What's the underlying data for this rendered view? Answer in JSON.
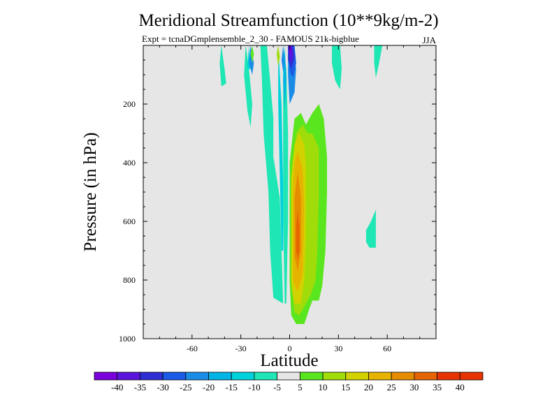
{
  "chart_data": {
    "type": "contour",
    "title": "Meridional Streamfunction (10**9kg/m-2)",
    "subtitle": "Expt = tcnaDGmplensemble_2_30 - FAMOUS 21k-bigblue",
    "season": "JJA",
    "xlabel": "Latitude",
    "ylabel": "Pressure (in hPa)",
    "xlim": [
      -90,
      90
    ],
    "ylim": [
      0,
      1000
    ],
    "y_inverted": true,
    "xticks": [
      -60,
      -30,
      0,
      30,
      60
    ],
    "yticks": [
      200,
      400,
      600,
      800,
      1000
    ],
    "background_color": "#e6e6e6",
    "colorbar": {
      "labels": [
        "-40",
        "-35",
        "-30",
        "-25",
        "-20",
        "-15",
        "-10",
        "-5",
        "5",
        "10",
        "15",
        "20",
        "25",
        "30",
        "35",
        "40"
      ],
      "colors": [
        "#7a00dc",
        "#5a14dc",
        "#2e2ed2",
        "#1a5ae6",
        "#1a8ce6",
        "#00b4e6",
        "#00d2dc",
        "#1ee6b4",
        "#e6e6e6",
        "#5ae61e",
        "#a0dc0a",
        "#d2d200",
        "#e6b400",
        "#e68c00",
        "#e66400",
        "#e63200"
      ]
    },
    "regions": [
      {
        "level": "-5",
        "color": "#1ee6b4",
        "points": [
          [
            -14,
            0
          ],
          [
            -12,
            120
          ],
          [
            -10,
            250
          ],
          [
            -10,
            380
          ],
          [
            -6,
            520
          ],
          [
            -5,
            700
          ],
          [
            -4,
            880
          ],
          [
            -10,
            860
          ],
          [
            -12,
            700
          ],
          [
            -13,
            500
          ],
          [
            -16,
            300
          ],
          [
            -17,
            120
          ],
          [
            -18,
            0
          ]
        ]
      },
      {
        "level": "-5",
        "color": "#1ee6b4",
        "points": [
          [
            -4,
            0
          ],
          [
            -2,
            80
          ],
          [
            -1,
            300
          ],
          [
            -1,
            600
          ],
          [
            -2,
            880
          ],
          [
            -3,
            880
          ],
          [
            -4,
            600
          ]
        ]
      },
      {
        "level": "-5",
        "color": "#1ee6b4",
        "points": [
          [
            -27,
            0
          ],
          [
            -25,
            80
          ],
          [
            -23,
            200
          ],
          [
            -24,
            280
          ],
          [
            -26,
            220
          ],
          [
            -28,
            100
          ]
        ]
      },
      {
        "level": "-5",
        "color": "#1ee6b4",
        "points": [
          [
            -42,
            0
          ],
          [
            -40,
            80
          ],
          [
            -39,
            130
          ],
          [
            -42,
            140
          ],
          [
            -43,
            60
          ]
        ]
      },
      {
        "level": "-5",
        "color": "#1ee6b4",
        "points": [
          [
            26,
            0
          ],
          [
            31,
            0
          ],
          [
            32,
            80
          ],
          [
            31,
            150
          ],
          [
            28,
            120
          ],
          [
            26,
            60
          ]
        ]
      },
      {
        "level": "-5",
        "color": "#1ee6b4",
        "points": [
          [
            52,
            0
          ],
          [
            57,
            0
          ],
          [
            55,
            60
          ],
          [
            53,
            110
          ],
          [
            52,
            60
          ]
        ]
      },
      {
        "level": "-5",
        "color": "#1ee6b4",
        "points": [
          [
            53,
            560
          ],
          [
            53,
            690
          ],
          [
            49,
            690
          ],
          [
            47,
            670
          ],
          [
            47,
            630
          ],
          [
            50,
            600
          ]
        ]
      },
      {
        "level": "-10",
        "color": "#00d2dc",
        "points": [
          [
            -7,
            0
          ],
          [
            -5,
            200
          ],
          [
            -4,
            480
          ],
          [
            -4,
            700
          ],
          [
            -5,
            700
          ],
          [
            -6,
            450
          ],
          [
            -7,
            200
          ]
        ]
      },
      {
        "level": "-10",
        "color": "#00d2dc",
        "points": [
          [
            -25,
            0
          ],
          [
            -24,
            80
          ],
          [
            -26,
            80
          ]
        ]
      },
      {
        "level": "-15",
        "color": "#00b4e6",
        "points": [
          [
            -3,
            0
          ],
          [
            -2,
            120
          ],
          [
            -3,
            220
          ],
          [
            -4,
            120
          ]
        ]
      },
      {
        "level": "-20",
        "color": "#1a8ce6",
        "points": [
          [
            -24,
            0
          ],
          [
            -22,
            60
          ],
          [
            -23,
            100
          ],
          [
            -25,
            60
          ]
        ]
      },
      {
        "level": "-20",
        "color": "#1a8ce6",
        "points": [
          [
            -4,
            0
          ],
          [
            -3,
            60
          ],
          [
            -4,
            90
          ],
          [
            -5,
            50
          ]
        ]
      },
      {
        "level": "-20",
        "color": "#1a8ce6",
        "points": [
          [
            -1,
            0
          ],
          [
            2,
            0
          ],
          [
            4,
            80
          ],
          [
            3,
            160
          ],
          [
            0,
            200
          ],
          [
            -1,
            100
          ]
        ]
      },
      {
        "level": "-25",
        "color": "#1a5ae6",
        "points": [
          [
            -1,
            0
          ],
          [
            3,
            0
          ],
          [
            4,
            60
          ],
          [
            2,
            110
          ],
          [
            0,
            90
          ]
        ]
      },
      {
        "level": "-30",
        "color": "#2e2ed2",
        "points": [
          [
            -1,
            0
          ],
          [
            2,
            0
          ],
          [
            3,
            40
          ],
          [
            1,
            80
          ],
          [
            -1,
            50
          ]
        ]
      },
      {
        "level": "-35",
        "color": "#5a14dc",
        "points": [
          [
            -1,
            0
          ],
          [
            1,
            0
          ],
          [
            2,
            30
          ],
          [
            1,
            60
          ],
          [
            0,
            40
          ]
        ]
      },
      {
        "level": "-40",
        "color": "#7a00dc",
        "points": [
          [
            0,
            0
          ],
          [
            1,
            0
          ],
          [
            1,
            25
          ],
          [
            0,
            25
          ]
        ]
      },
      {
        "level": "5",
        "color": "#5ae61e",
        "points": [
          [
            18,
            200
          ],
          [
            21,
            250
          ],
          [
            23,
            380
          ],
          [
            23,
            500
          ],
          [
            22,
            700
          ],
          [
            20,
            820
          ],
          [
            18,
            870
          ],
          [
            14,
            870
          ],
          [
            12,
            900
          ],
          [
            9,
            950
          ],
          [
            4,
            950
          ],
          [
            1,
            920
          ],
          [
            0,
            800
          ],
          [
            0,
            400
          ],
          [
            3,
            250
          ],
          [
            7,
            230
          ],
          [
            10,
            270
          ],
          [
            14,
            230
          ]
        ]
      },
      {
        "level": "5",
        "color": "#5ae61e",
        "points": [
          [
            -23,
            0
          ],
          [
            -22,
            30
          ],
          [
            -23,
            60
          ],
          [
            -24,
            30
          ]
        ]
      },
      {
        "level": "10",
        "color": "#a0dc0a",
        "points": [
          [
            14,
            300
          ],
          [
            18,
            350
          ],
          [
            18,
            500
          ],
          [
            17,
            700
          ],
          [
            16,
            800
          ],
          [
            13,
            850
          ],
          [
            10,
            880
          ],
          [
            6,
            920
          ],
          [
            3,
            910
          ],
          [
            1,
            820
          ],
          [
            1,
            450
          ],
          [
            4,
            300
          ],
          [
            8,
            270
          ],
          [
            11,
            300
          ]
        ]
      },
      {
        "level": "10",
        "color": "#a0dc0a",
        "points": [
          [
            -7,
            0
          ],
          [
            -6,
            40
          ],
          [
            -7,
            70
          ],
          [
            -8,
            30
          ]
        ]
      },
      {
        "level": "15",
        "color": "#d2d200",
        "points": [
          [
            6,
            300
          ],
          [
            9,
            340
          ],
          [
            10,
            420
          ],
          [
            10,
            650
          ],
          [
            9,
            800
          ],
          [
            7,
            880
          ],
          [
            3,
            880
          ],
          [
            1,
            800
          ],
          [
            1,
            450
          ],
          [
            3,
            340
          ]
        ]
      },
      {
        "level": "20",
        "color": "#e6b400",
        "points": [
          [
            5,
            360
          ],
          [
            8,
            420
          ],
          [
            9,
            550
          ],
          [
            8,
            780
          ],
          [
            5,
            840
          ],
          [
            2,
            800
          ],
          [
            2,
            500
          ],
          [
            3,
            400
          ]
        ]
      },
      {
        "level": "25",
        "color": "#e68c00",
        "points": [
          [
            5,
            430
          ],
          [
            7,
            520
          ],
          [
            7,
            700
          ],
          [
            5,
            770
          ],
          [
            3,
            720
          ],
          [
            3,
            520
          ]
        ]
      },
      {
        "level": "30",
        "color": "#e66400",
        "points": [
          [
            5,
            560
          ],
          [
            6,
            620
          ],
          [
            6,
            700
          ],
          [
            5,
            730
          ],
          [
            4,
            700
          ],
          [
            4,
            620
          ]
        ]
      }
    ]
  }
}
